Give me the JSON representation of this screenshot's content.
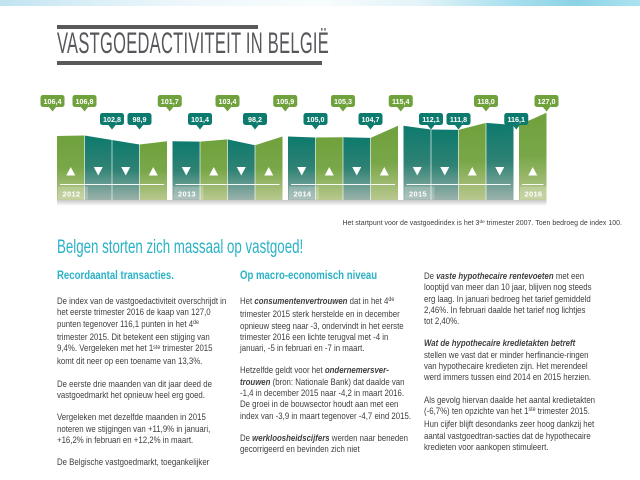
{
  "header": {
    "title": "VASTGOEDACTIVITEIT IN BELGIË"
  },
  "chart_data": {
    "type": "area",
    "description": "Vastgoedactiviteitsindex per trimester, opeenvolgende kwartalen 2012-2016",
    "baseline": {
      "period": "3de trimester 2007",
      "value": 100
    },
    "colors": {
      "up": "#6fa13c",
      "down": "#0c7a6d"
    },
    "points": [
      {
        "quarter": "2011 Q4",
        "value": 106.4,
        "label": "106,4",
        "trend": "up"
      },
      {
        "quarter": "2012 Q1",
        "value": 106.8,
        "label": "106,8",
        "trend": "up"
      },
      {
        "quarter": "2012 Q2",
        "value": 102.8,
        "label": "102,8",
        "trend": "down"
      },
      {
        "quarter": "2012 Q3",
        "value": 98.9,
        "label": "98,9",
        "trend": "down"
      },
      {
        "quarter": "2012 Q4",
        "value": 101.7,
        "label": "101,7",
        "trend": "up"
      },
      {
        "quarter": "2013 Q1",
        "value": 101.4,
        "label": "101,4",
        "trend": "down"
      },
      {
        "quarter": "2013 Q2",
        "value": 103.4,
        "label": "103,4",
        "trend": "up"
      },
      {
        "quarter": "2013 Q3",
        "value": 98.2,
        "label": "98,2",
        "trend": "down"
      },
      {
        "quarter": "2013 Q4",
        "value": 105.9,
        "label": "105,9",
        "trend": "up"
      },
      {
        "quarter": "2014 Q1",
        "value": 105.0,
        "label": "105,0",
        "trend": "down"
      },
      {
        "quarter": "2014 Q2",
        "value": 105.3,
        "label": "105,3",
        "trend": "up"
      },
      {
        "quarter": "2014 Q3",
        "value": 104.7,
        "label": "104,7",
        "trend": "down"
      },
      {
        "quarter": "2014 Q4",
        "value": 115.4,
        "label": "115,4",
        "trend": "up"
      },
      {
        "quarter": "2015 Q1",
        "value": 112.1,
        "label": "112,1",
        "trend": "down"
      },
      {
        "quarter": "2015 Q2",
        "value": 111.8,
        "label": "111,8",
        "trend": "down"
      },
      {
        "quarter": "2015 Q3",
        "value": 118.0,
        "label": "118,0",
        "trend": "up"
      },
      {
        "quarter": "2015 Q4",
        "value": 116.1,
        "label": "116,1",
        "trend": "down"
      },
      {
        "quarter": "2016 Q1",
        "value": 127.0,
        "label": "127,0",
        "trend": "up"
      }
    ],
    "year_groups": [
      {
        "year": "2012",
        "segments": 4
      },
      {
        "year": "2013",
        "segments": 4
      },
      {
        "year": "2014",
        "segments": 4
      },
      {
        "year": "2015",
        "segments": 4
      },
      {
        "year": "2016",
        "segments": 1
      }
    ]
  },
  "footnote": {
    "runs": [
      {
        "t": "Het startpunt voor de vastgoedindex is het 3"
      },
      {
        "t": "de",
        "style": "sup"
      },
      {
        "t": " trimester 2007. Toen bedroeg de index 100."
      }
    ]
  },
  "headline": {
    "text": "Belgen storten zich massaal op vastgoed!",
    "color": "#2ab2c6"
  },
  "columns": [
    {
      "heading": "Recordaantal transacties.",
      "paragraphs": [
        [
          {
            "t": "De index van de vastgoedactiviteit overschrijdt in het eerste trimester 2016 de kaap van 127,0 punten tegenover 116,1 punten in het 4"
          },
          {
            "t": "de",
            "style": "sup"
          },
          {
            "t": " trimester 2015. Dit betekent een stijging van 9,4%. Vergeleken met het 1"
          },
          {
            "t": "ste",
            "style": "sup"
          },
          {
            "t": " trimester 2015 komt dit neer op een toename van 13,3%."
          }
        ],
        [
          {
            "t": "De eerste drie maanden van dit jaar deed de vastgoedmarkt het opnieuw heel erg goed."
          }
        ],
        [
          {
            "t": "Vergeleken met dezelfde maanden in 2015 noteren we stijgingen van +11,9% in januari, +16,2% in februari en +12,2% in maart."
          }
        ],
        [
          {
            "t": "De Belgische vastgoedmarkt, toegankelijker"
          }
        ]
      ]
    },
    {
      "heading": "Op macro-economisch niveau",
      "paragraphs": [
        [
          {
            "t": "Het "
          },
          {
            "t": "consumentenvertrouwen",
            "style": "bi"
          },
          {
            "t": " dat in het 4"
          },
          {
            "t": "de",
            "style": "sup"
          },
          {
            "t": " trimester 2015 sterk herstelde en in december opnieuw steeg naar -3, ondervindt in het eerste trimester 2016 een lichte terugval met -4 in januari, -5 in februari en -7 in maart."
          }
        ],
        [
          {
            "t": "Hetzelfde geldt voor het "
          },
          {
            "t": "ondernemersver-trouwen",
            "style": "bi"
          },
          {
            "t": " (bron: Nationale Bank) dat daalde van -1,4 in december 2015 naar -4,2 in maart 2016. De groei in de bouwsector houdt aan met een index van -3,9 in maart tegenover -4,7 eind 2015."
          }
        ],
        [
          {
            "t": "De "
          },
          {
            "t": "werkloosheidscijfers",
            "style": "bi"
          },
          {
            "t": " werden naar beneden gecorrigeerd en bevinden zich niet"
          }
        ]
      ]
    },
    {
      "heading": "",
      "paragraphs": [
        [
          {
            "t": "De "
          },
          {
            "t": "vaste hypothecaire rentevoeten",
            "style": "bi"
          },
          {
            "t": " met een looptijd van meer dan 10 jaar, blijven nog steeds erg laag. In januari bedroeg het tarief gemiddeld 2,46%. In februari daalde het tarief nog lichtjes tot 2,40%."
          }
        ],
        [
          {
            "t": "Wat de hypothecaire kredietakten betreft",
            "style": "bi"
          },
          {
            "t": " stellen we vast dat er minder herfinancie-ringen van hypothecaire kredieten zijn. Het merendeel werd immers tussen eind 2014 en 2015 herzien."
          }
        ],
        [
          {
            "t": "Als gevolg hiervan daalde het aantal kredietakten (-6,7%) ten opzichte van het 1"
          },
          {
            "t": "ste",
            "style": "sup"
          },
          {
            "t": " trimester 2015. Hun cijfer blijft desondanks zeer hoog dankzij het aantal vastgoedtran-sacties dat de hypothecaire kredieten voor aankopen stimuleert."
          }
        ]
      ]
    }
  ]
}
